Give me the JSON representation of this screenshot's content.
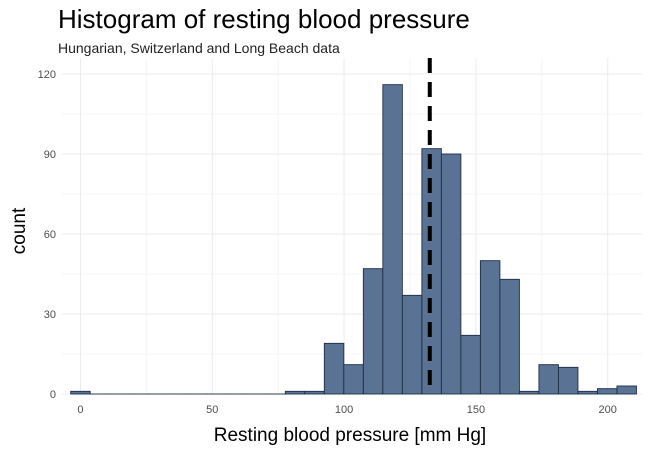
{
  "chart_data": {
    "type": "bar",
    "title": "Histogram of resting blood pressure",
    "subtitle": "Hungarian, Switzerland and Long Beach data",
    "xlabel": "Resting blood pressure [mm Hg]",
    "ylabel": "count",
    "xlim": [
      -7,
      213
    ],
    "ylim": [
      0,
      126
    ],
    "x_ticks": [
      0,
      50,
      100,
      150,
      200
    ],
    "y_ticks": [
      0,
      30,
      60,
      90,
      120
    ],
    "bin_width": 7.4,
    "bins": [
      {
        "x": 0,
        "count": 1
      },
      {
        "x": 7.4,
        "count": 0
      },
      {
        "x": 14.8,
        "count": 0
      },
      {
        "x": 22.2,
        "count": 0
      },
      {
        "x": 29.6,
        "count": 0
      },
      {
        "x": 37.0,
        "count": 0
      },
      {
        "x": 44.4,
        "count": 0
      },
      {
        "x": 51.8,
        "count": 0
      },
      {
        "x": 59.2,
        "count": 0
      },
      {
        "x": 66.6,
        "count": 0
      },
      {
        "x": 74.0,
        "count": 0
      },
      {
        "x": 81.4,
        "count": 1
      },
      {
        "x": 88.8,
        "count": 1
      },
      {
        "x": 96.2,
        "count": 19
      },
      {
        "x": 103.6,
        "count": 11
      },
      {
        "x": 111.0,
        "count": 47
      },
      {
        "x": 118.4,
        "count": 116
      },
      {
        "x": 125.8,
        "count": 37
      },
      {
        "x": 133.2,
        "count": 92
      },
      {
        "x": 140.6,
        "count": 90
      },
      {
        "x": 148.0,
        "count": 22
      },
      {
        "x": 155.4,
        "count": 50
      },
      {
        "x": 162.8,
        "count": 43
      },
      {
        "x": 170.2,
        "count": 1
      },
      {
        "x": 177.6,
        "count": 11
      },
      {
        "x": 185.0,
        "count": 10
      },
      {
        "x": 192.4,
        "count": 1
      },
      {
        "x": 199.8,
        "count": 2
      },
      {
        "x": 207.2,
        "count": 3
      }
    ],
    "reference_line": {
      "x": 132.5,
      "style": "dashed"
    },
    "grid": true,
    "legend": "none",
    "colors": {
      "bar_fill": "#5a7395",
      "bar_stroke": "#1c2e45",
      "grid_major": "#ebebeb",
      "grid_minor": "#f4f4f4",
      "reference_line": "#000000"
    }
  }
}
